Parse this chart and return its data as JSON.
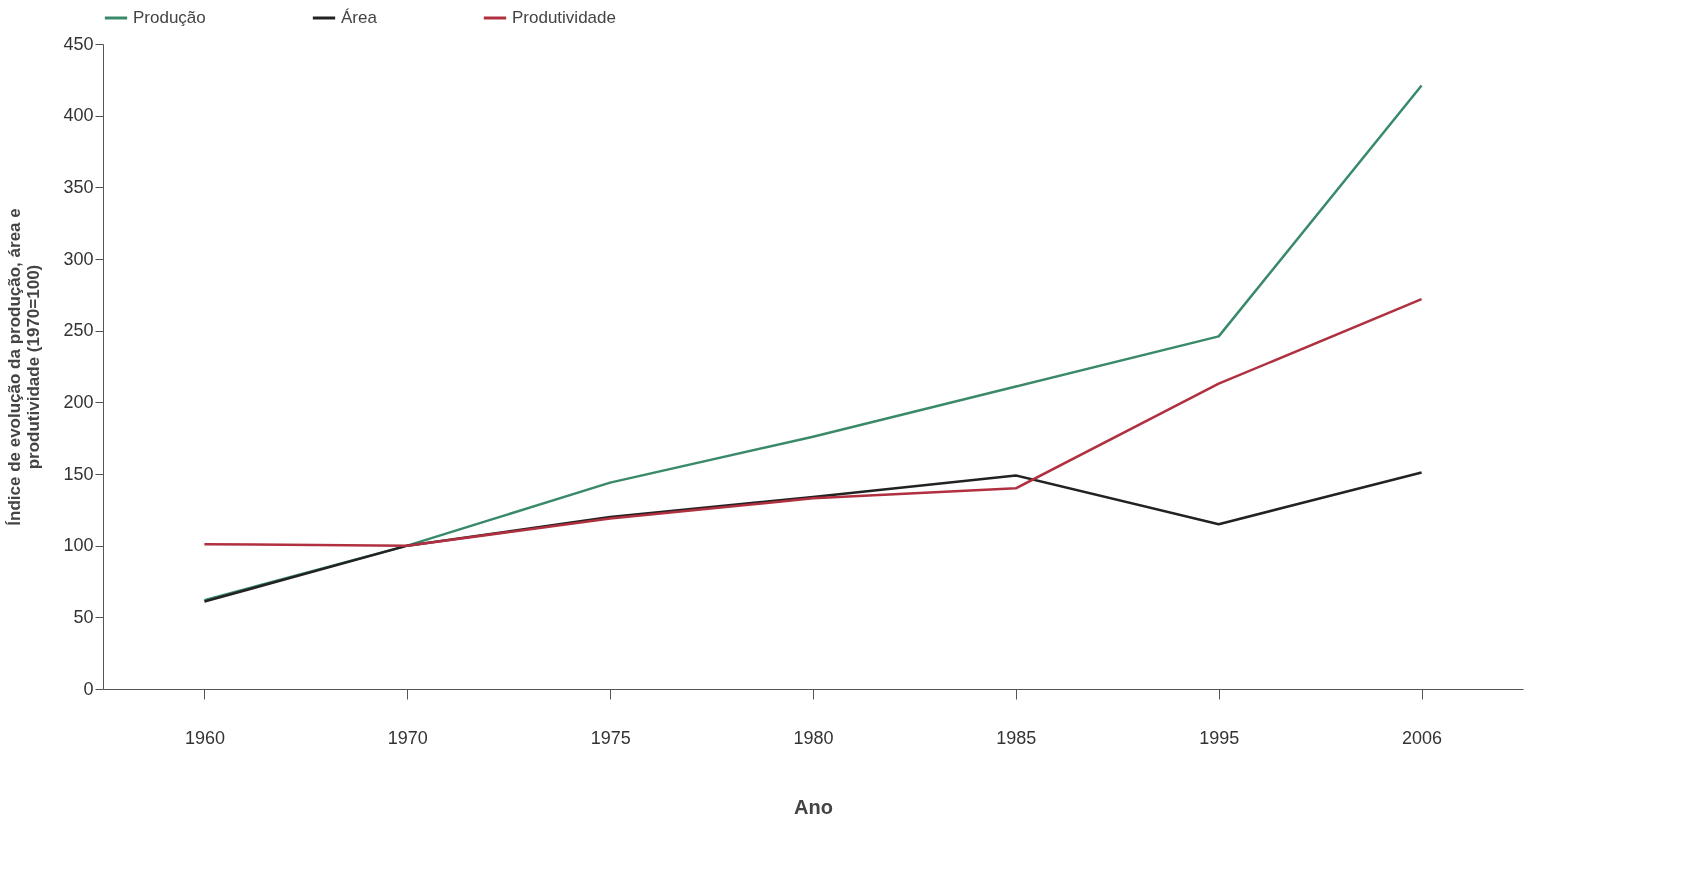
{
  "chart_data": {
    "type": "line",
    "categories": [
      "1960",
      "1970",
      "1975",
      "1980",
      "1985",
      "1995",
      "2006"
    ],
    "series": [
      {
        "name": "Produção",
        "color": "#3a8a6a",
        "values": [
          62,
          100,
          144,
          176,
          211,
          246,
          421
        ]
      },
      {
        "name": "Área",
        "color": "#222222",
        "values": [
          61,
          100,
          120,
          134,
          149,
          115,
          151
        ]
      },
      {
        "name": "Produtividade",
        "color": "#b03040",
        "values": [
          101,
          100,
          119,
          133,
          140,
          213,
          272
        ]
      }
    ],
    "xlabel": "Ano",
    "ylabel": "Índice de evolução da produção, área e\nprodutividade (1970=100)",
    "ylim": [
      0,
      450
    ],
    "yticks": [
      0,
      50,
      100,
      150,
      200,
      250,
      300,
      350,
      400,
      450
    ],
    "grid": false,
    "legend": "top",
    "marker": "none",
    "line_style": "solid"
  }
}
